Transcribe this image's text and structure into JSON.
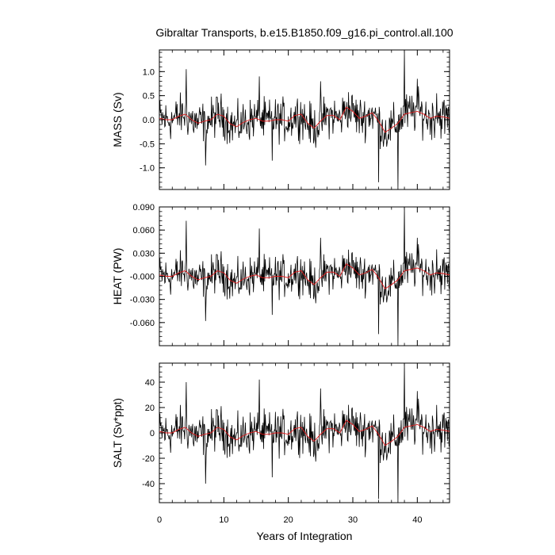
{
  "chart_data": {
    "type": "line",
    "title": "Gibraltar Transports, b.e15.B1850.f09_g16.pi_control.all.100",
    "xlabel": "Years of Integration",
    "xlim": [
      0,
      45
    ],
    "xticks": [
      "0",
      "10",
      "20",
      "30",
      "40"
    ],
    "xtick_values": [
      0,
      10,
      20,
      30,
      40
    ],
    "panels": [
      {
        "ylabel": "MASS (Sv)",
        "ylim": [
          -1.45,
          1.45
        ],
        "yticks": [
          "1.0",
          "0.5",
          "0.0",
          "-0.5",
          "-1.0"
        ],
        "ytick_values": [
          1.0,
          0.5,
          0.0,
          -0.5,
          -1.0
        ],
        "raw_scale": 0.32,
        "spikes": [
          [
            4.2,
            1.05
          ],
          [
            7.2,
            -0.95
          ],
          [
            15.5,
            0.9
          ],
          [
            17.5,
            -0.85
          ],
          [
            25.0,
            0.8
          ],
          [
            34.0,
            -1.3
          ],
          [
            37.0,
            -1.45
          ],
          [
            38.0,
            1.45
          ],
          [
            40.0,
            0.85
          ],
          [
            43.0,
            0.55
          ]
        ]
      },
      {
        "ylabel": "HEAT (PW)",
        "ylim": [
          -0.09,
          0.09
        ],
        "yticks": [
          "0.090",
          "0.060",
          "0.030",
          "-0.000",
          "-0.030",
          "-0.060"
        ],
        "ytick_values": [
          0.09,
          0.06,
          0.03,
          0.0,
          -0.03,
          -0.06
        ],
        "raw_scale": 0.019,
        "spikes": [
          [
            4.2,
            0.072
          ],
          [
            7.2,
            -0.058
          ],
          [
            15.5,
            0.062
          ],
          [
            17.5,
            -0.05
          ],
          [
            25.0,
            0.05
          ],
          [
            34.0,
            -0.075
          ],
          [
            37.0,
            -0.09
          ],
          [
            38.0,
            0.09
          ],
          [
            40.0,
            0.05
          ],
          [
            43.0,
            0.035
          ]
        ]
      },
      {
        "ylabel": "SALT (Sv*ppt)",
        "ylim": [
          -55,
          55
        ],
        "yticks": [
          "40",
          "20",
          "0",
          "-20",
          "-40"
        ],
        "ytick_values": [
          40,
          20,
          0,
          -20,
          -40
        ],
        "raw_scale": 12.5,
        "spikes": [
          [
            4.2,
            40
          ],
          [
            7.2,
            -40
          ],
          [
            15.5,
            42
          ],
          [
            17.5,
            -35
          ],
          [
            25.0,
            35
          ],
          [
            34.0,
            -52
          ],
          [
            37.0,
            -55
          ],
          [
            38.0,
            55
          ],
          [
            40.0,
            33
          ],
          [
            43.0,
            22
          ]
        ]
      }
    ],
    "smooth_series": {
      "name": "",
      "x": [
        0,
        1,
        2,
        3,
        4,
        5,
        6,
        7,
        8,
        9,
        10,
        11,
        12,
        13,
        14,
        15,
        16,
        17,
        18,
        19,
        20,
        21,
        22,
        23,
        24,
        25,
        26,
        27,
        28,
        29,
        30,
        31,
        32,
        33,
        34,
        35,
        36,
        37,
        38,
        39,
        40,
        41,
        42,
        43,
        44,
        45
      ],
      "values_relative": [
        0.02,
        0.0,
        0.0,
        0.05,
        0.08,
        0.0,
        -0.05,
        -0.02,
        0.0,
        0.08,
        0.05,
        -0.06,
        -0.1,
        -0.04,
        0.0,
        0.02,
        -0.02,
        -0.02,
        0.0,
        0.0,
        -0.02,
        0.06,
        0.08,
        -0.05,
        -0.12,
        -0.02,
        0.06,
        0.06,
        0.0,
        0.18,
        0.12,
        0.02,
        0.05,
        0.1,
        -0.02,
        -0.18,
        -0.12,
        -0.05,
        0.08,
        0.1,
        0.12,
        0.08,
        0.02,
        0.05,
        0.04,
        0.02
      ]
    },
    "grid": false,
    "colors": {
      "raw": "#000000",
      "smooth": "#e31a1c",
      "axes": "#000000"
    }
  }
}
